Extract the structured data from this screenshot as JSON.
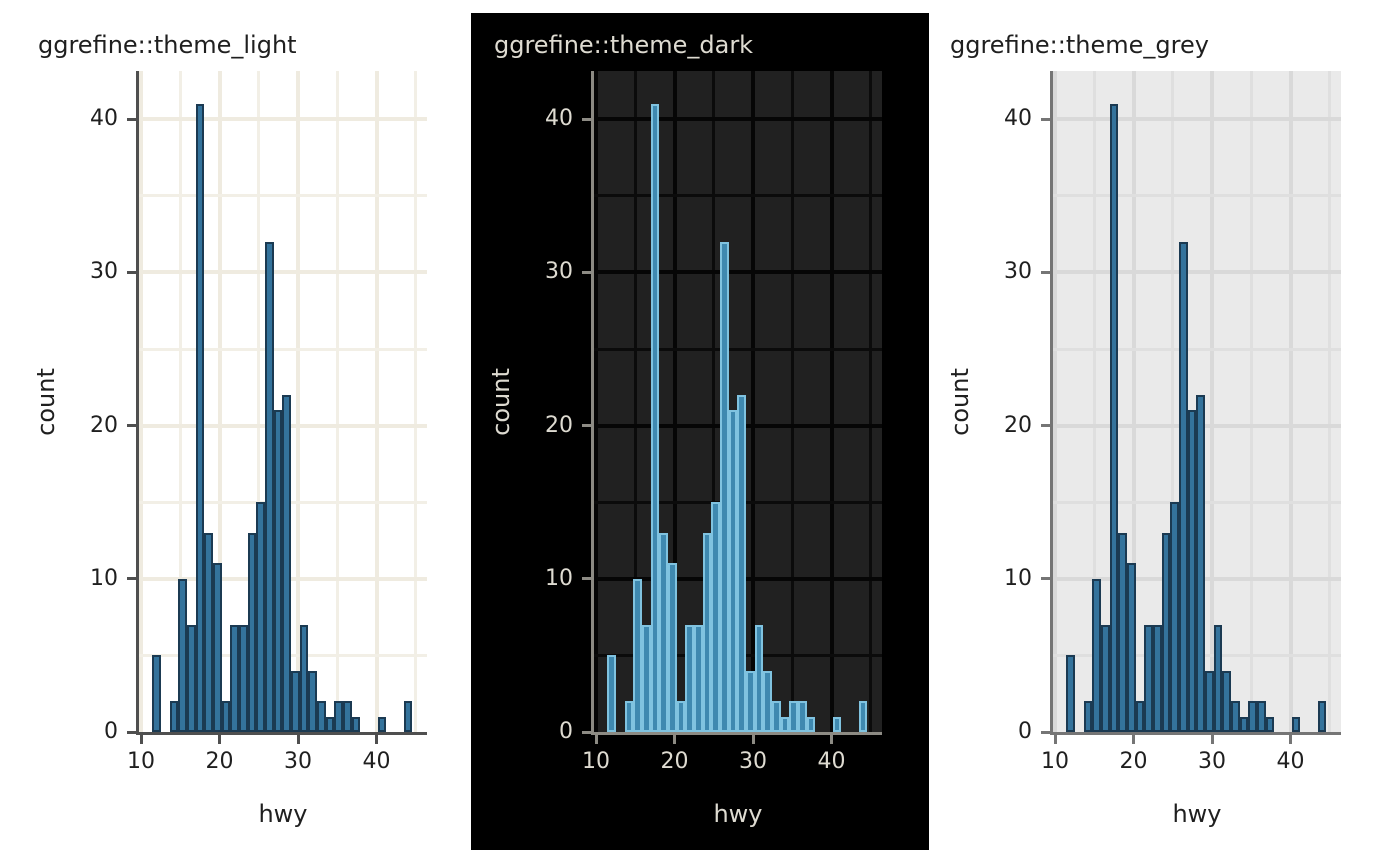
{
  "page": {
    "background": "#ffffff"
  },
  "chart_data": [
    {
      "type": "bar",
      "subtype": "histogram",
      "title": "ggrefine::theme_light",
      "xlabel": "hwy",
      "ylabel": "count",
      "x_ticks": [
        10,
        20,
        30,
        40
      ],
      "y_ticks": [
        0,
        10,
        20,
        30,
        40
      ],
      "x_minor_gridlines": [
        15,
        25,
        35,
        45
      ],
      "y_minor_gridlines": [
        5,
        15,
        25,
        35
      ],
      "xlim": [
        9.7,
        46.4
      ],
      "ylim": [
        0,
        43.1
      ],
      "binwidth": 1.1034,
      "bin_centers": [
        12,
        13.1,
        14.21,
        15.31,
        16.41,
        17.52,
        18.62,
        19.72,
        20.83,
        21.93,
        23.03,
        24.14,
        25.24,
        26.34,
        27.45,
        28.55,
        29.66,
        30.76,
        31.86,
        32.97,
        34.07,
        35.17,
        36.28,
        37.38,
        38.48,
        39.59,
        40.69,
        41.79,
        42.9,
        44
      ],
      "values": [
        5,
        0,
        2,
        10,
        7,
        41,
        13,
        11,
        2,
        7,
        7,
        13,
        15,
        32,
        21,
        22,
        4,
        7,
        4,
        2,
        1,
        2,
        2,
        1,
        0,
        0,
        1,
        0,
        0,
        2
      ],
      "grid": true,
      "legend": "none",
      "theme": {
        "figure_bg": "#ffffff",
        "panel_bg": "#ffffff",
        "grid_major": "#efebe0",
        "grid_minor": "#f2efe6",
        "axis_line": "#4f4f4f",
        "tick_color": "#4f4f4f",
        "text_color": "#1f1f1f",
        "bar_fill": "#34739c",
        "bar_stroke": "#1b3a52"
      }
    },
    {
      "type": "bar",
      "subtype": "histogram",
      "title": "ggrefine::theme_dark",
      "xlabel": "hwy",
      "ylabel": "count",
      "x_ticks": [
        10,
        20,
        30,
        40
      ],
      "y_ticks": [
        0,
        10,
        20,
        30,
        40
      ],
      "x_minor_gridlines": [
        15,
        25,
        35,
        45
      ],
      "y_minor_gridlines": [
        5,
        15,
        25,
        35
      ],
      "xlim": [
        9.7,
        46.4
      ],
      "ylim": [
        0,
        43.1
      ],
      "binwidth": 1.1034,
      "bin_centers": [
        12,
        13.1,
        14.21,
        15.31,
        16.41,
        17.52,
        18.62,
        19.72,
        20.83,
        21.93,
        23.03,
        24.14,
        25.24,
        26.34,
        27.45,
        28.55,
        29.66,
        30.76,
        31.86,
        32.97,
        34.07,
        35.17,
        36.28,
        37.38,
        38.48,
        39.59,
        40.69,
        41.79,
        42.9,
        44
      ],
      "values": [
        5,
        0,
        2,
        10,
        7,
        41,
        13,
        11,
        2,
        7,
        7,
        13,
        15,
        32,
        21,
        22,
        4,
        7,
        4,
        2,
        1,
        2,
        2,
        1,
        0,
        0,
        1,
        0,
        0,
        2
      ],
      "grid": true,
      "legend": "none",
      "theme": {
        "figure_bg": "#000000",
        "panel_bg": "#212121",
        "grid_major": "#060606",
        "grid_minor": "#0b0b0b",
        "axis_line": "#8d8b84",
        "tick_color": "#8d8b84",
        "text_color": "#dedbd1",
        "bar_fill": "#3f89b0",
        "bar_stroke": "#80c3e0"
      }
    },
    {
      "type": "bar",
      "subtype": "histogram",
      "title": "ggrefine::theme_grey",
      "xlabel": "hwy",
      "ylabel": "count",
      "x_ticks": [
        10,
        20,
        30,
        40
      ],
      "y_ticks": [
        0,
        10,
        20,
        30,
        40
      ],
      "x_minor_gridlines": [
        15,
        25,
        35,
        45
      ],
      "y_minor_gridlines": [
        5,
        15,
        25,
        35
      ],
      "xlim": [
        9.7,
        46.4
      ],
      "ylim": [
        0,
        43.1
      ],
      "binwidth": 1.1034,
      "bin_centers": [
        12,
        13.1,
        14.21,
        15.31,
        16.41,
        17.52,
        18.62,
        19.72,
        20.83,
        21.93,
        23.03,
        24.14,
        25.24,
        26.34,
        27.45,
        28.55,
        29.66,
        30.76,
        31.86,
        32.97,
        34.07,
        35.17,
        36.28,
        37.38,
        38.48,
        39.59,
        40.69,
        41.79,
        42.9,
        44
      ],
      "values": [
        5,
        0,
        2,
        10,
        7,
        41,
        13,
        11,
        2,
        7,
        7,
        13,
        15,
        32,
        21,
        22,
        4,
        7,
        4,
        2,
        1,
        2,
        2,
        1,
        0,
        0,
        1,
        0,
        0,
        2
      ],
      "grid": true,
      "legend": "none",
      "theme": {
        "figure_bg": "#ffffff",
        "panel_bg": "#eaeaea",
        "grid_major": "#d9d9d9",
        "grid_minor": "#dfdfdf",
        "axis_line": "#757575",
        "tick_color": "#757575",
        "text_color": "#1f1f1f",
        "bar_fill": "#34739c",
        "bar_stroke": "#1b3a52"
      }
    }
  ]
}
